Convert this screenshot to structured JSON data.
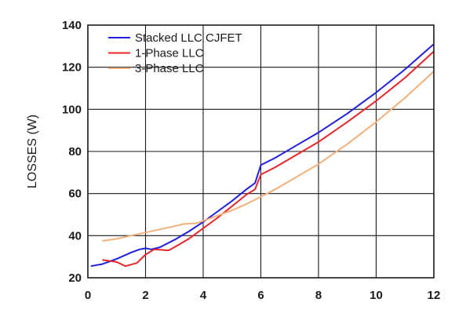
{
  "chart_data": {
    "type": "line",
    "xlabel": "",
    "ylabel": "LOSSES (W)",
    "xlim": [
      0,
      12
    ],
    "ylim": [
      20,
      140
    ],
    "xticks": [
      "0",
      "2",
      "4",
      "6",
      "8",
      "10",
      "12"
    ],
    "yticks": [
      "20",
      "40",
      "60",
      "80",
      "100",
      "120",
      "140"
    ],
    "grid": true,
    "legend_position": "top-left",
    "series": [
      {
        "name": "Stacked LLC CJFET",
        "color": "#1f1fe0",
        "x": [
          0.1,
          0.5,
          1.0,
          1.5,
          1.8,
          2.0,
          2.2,
          2.5,
          3.0,
          3.5,
          4.0,
          4.5,
          5.0,
          5.5,
          5.8,
          6.0,
          6.5,
          7.0,
          8.0,
          9.0,
          10.0,
          11.0,
          12.0
        ],
        "y": [
          25.5,
          26.5,
          29,
          32,
          33.5,
          34,
          33.5,
          34.5,
          38,
          42,
          46.5,
          51.5,
          56.5,
          62,
          65,
          73.5,
          77,
          81,
          89,
          98,
          108,
          119,
          131
        ]
      },
      {
        "name": "1-Phase LLC",
        "color": "#e8262a",
        "x": [
          0.5,
          1.0,
          1.3,
          1.7,
          2.0,
          2.3,
          2.8,
          3.0,
          3.5,
          4.0,
          4.5,
          5.0,
          5.5,
          5.8,
          6.0,
          6.5,
          7.0,
          8.0,
          9.0,
          10.0,
          11.0,
          12.0
        ],
        "y": [
          28.5,
          27.5,
          25.5,
          27,
          31,
          33.5,
          33,
          34.5,
          38.5,
          43.5,
          48.5,
          54,
          59.5,
          62,
          69,
          72.5,
          76.5,
          84.5,
          94,
          104,
          115,
          127.5
        ]
      },
      {
        "name": "3-Phase LLC",
        "color": "#f2b07a",
        "x": [
          0.5,
          1.0,
          1.5,
          2.0,
          2.5,
          3.0,
          3.3,
          3.8,
          4.0,
          4.5,
          5.0,
          5.5,
          6.0,
          6.5,
          7.0,
          8.0,
          9.0,
          10.0,
          11.0,
          12.0
        ],
        "y": [
          37.5,
          38.5,
          40,
          41.5,
          43,
          44.5,
          45.5,
          46,
          47,
          49.5,
          52,
          55,
          58.5,
          62,
          66,
          74,
          83.5,
          94,
          105.5,
          118
        ]
      }
    ]
  }
}
